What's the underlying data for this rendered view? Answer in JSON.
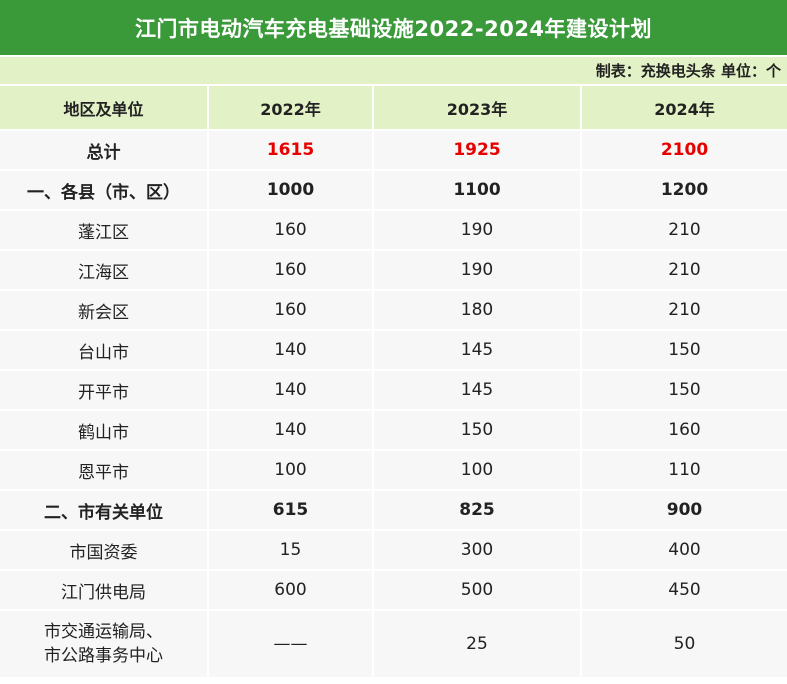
{
  "title": "江门市电动汽车充电基础设施2022-2024年建设计划",
  "meta": "制表：充换电头条   单位：个",
  "headers": [
    "地区及单位",
    "2022年",
    "2023年",
    "2024年"
  ],
  "rows": [
    {
      "name": "总计",
      "v2022": "1615",
      "v2023": "1925",
      "v2024": "2100"
    },
    {
      "name": "一、各县（市、区）",
      "v2022": "1000",
      "v2023": "1100",
      "v2024": "1200"
    },
    {
      "name": "蓬江区",
      "v2022": "160",
      "v2023": "190",
      "v2024": "210"
    },
    {
      "name": "江海区",
      "v2022": "160",
      "v2023": "190",
      "v2024": "210"
    },
    {
      "name": "新会区",
      "v2022": "160",
      "v2023": "180",
      "v2024": "210"
    },
    {
      "name": "台山市",
      "v2022": "140",
      "v2023": "145",
      "v2024": "150"
    },
    {
      "name": "开平市",
      "v2022": "140",
      "v2023": "145",
      "v2024": "150"
    },
    {
      "name": "鹤山市",
      "v2022": "140",
      "v2023": "150",
      "v2024": "160"
    },
    {
      "name": "恩平市",
      "v2022": "100",
      "v2023": "100",
      "v2024": "110"
    },
    {
      "name": "二、市有关单位",
      "v2022": "615",
      "v2023": "825",
      "v2024": "900"
    },
    {
      "name": "市国资委",
      "v2022": "15",
      "v2023": "300",
      "v2024": "400"
    },
    {
      "name": "江门供电局",
      "v2022": "600",
      "v2023": "500",
      "v2024": "450"
    },
    {
      "name_line1": "市交通运输局、",
      "name_line2": "市公路事务中心",
      "v2022": "——",
      "v2023": "25",
      "v2024": "50"
    }
  ],
  "colors": {
    "title_bg": "#3a9a3a",
    "header_bg": "#e3f2c6",
    "total_text": "#e60000"
  }
}
